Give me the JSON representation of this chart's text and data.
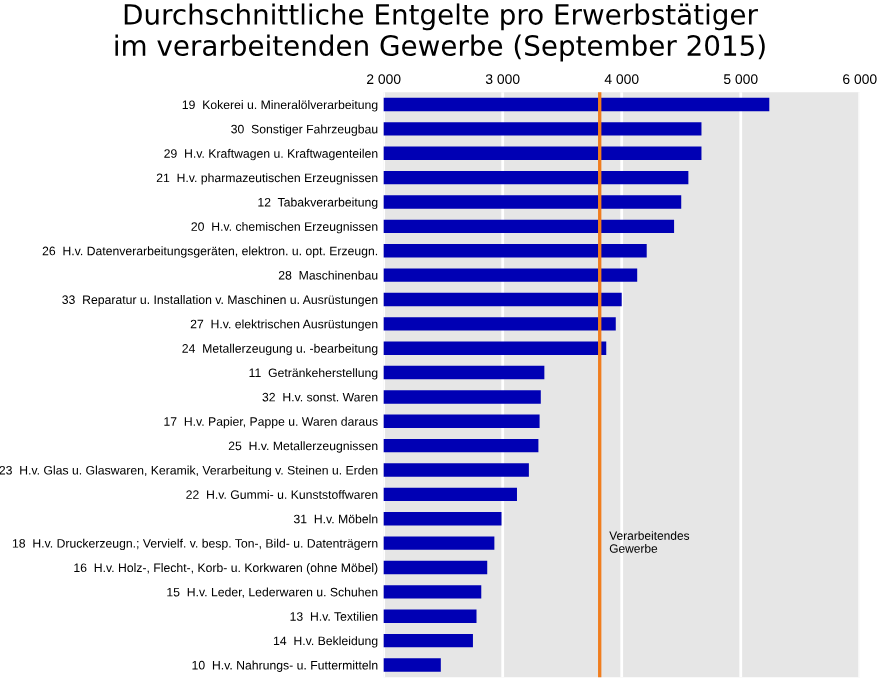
{
  "chart_data": {
    "type": "bar",
    "orientation": "horizontal",
    "title": "Durchschnittliche Entgelte pro Erwerbstätiger\nim verarbeitenden Gewerbe (September 2015)",
    "categories": [
      "19  Kokerei u. Mineralölverarbeitung",
      "30  Sonstiger Fahrzeugbau",
      "29  H.v. Kraftwagen u. Kraftwagenteilen",
      "21  H.v. pharmazeutischen Erzeugnissen",
      "12  Tabakverarbeitung",
      "20  H.v. chemischen Erzeugnissen",
      "26  H.v. Datenverarbeitungsgeräten, elektron. u. opt. Erzeugn.",
      "28  Maschinenbau",
      "33  Reparatur u. Installation v. Maschinen u. Ausrüstungen",
      "27  H.v. elektrischen Ausrüstungen",
      "24  Metallerzeugung u. -bearbeitung",
      "11  Getränkeherstellung",
      "32  H.v. sonst. Waren",
      "17  H.v. Papier, Pappe u. Waren daraus",
      "25  H.v. Metallerzeugnissen",
      "23  H.v. Glas u. Glaswaren, Keramik, Verarbeitung v. Steinen u. Erden",
      "22  H.v. Gummi- u. Kunststoffwaren",
      "31  H.v. Möbeln",
      "18  H.v. Druckerzeugn.; Vervielf. v. besp. Ton-, Bild- u. Datenträgern",
      "16  H.v. Holz-, Flecht-, Korb- u. Korkwaren (ohne Möbel)",
      "15  H.v. Leder, Lederwaren u. Schuhen",
      "13  H.v. Textilien",
      "14  H.v. Bekleidung",
      "10  H.v. Nahrungs- u. Futtermitteln"
    ],
    "values": [
      5240,
      4670,
      4670,
      4560,
      4500,
      4440,
      4210,
      4130,
      4000,
      3950,
      3870,
      3350,
      3320,
      3310,
      3300,
      3220,
      3120,
      2990,
      2930,
      2870,
      2820,
      2780,
      2750,
      2480
    ],
    "color": "#0000b4",
    "xlim": [
      2000,
      6000
    ],
    "xticks": [
      {
        "value": 2000,
        "label": "2 000"
      },
      {
        "value": 3000,
        "label": "3 000"
      },
      {
        "value": 4000,
        "label": "4 000"
      },
      {
        "value": 5000,
        "label": "5 000"
      },
      {
        "value": 6000,
        "label": "6 000"
      }
    ],
    "ref_lines": [
      {
        "axis": "x",
        "value": 3815,
        "label": "Verarbeitendes\nGewerbe",
        "color": "#f07d1e"
      }
    ],
    "grid": "x"
  }
}
